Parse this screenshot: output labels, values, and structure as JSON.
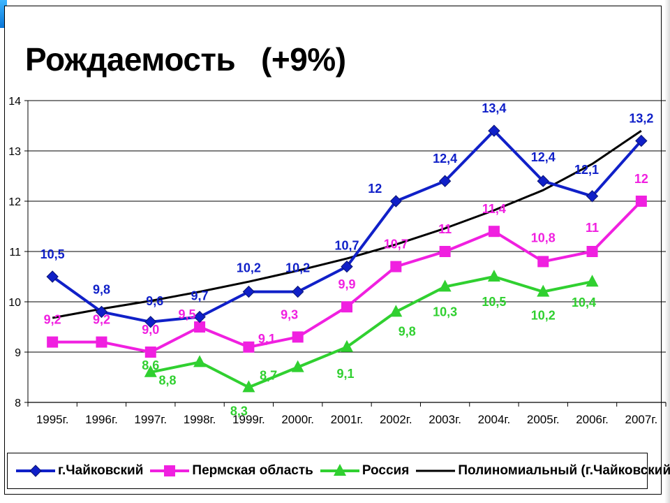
{
  "chart_data": {
    "type": "line",
    "title": "Рождаемость   (+9%)",
    "categories": [
      "1995г.",
      "1996г.",
      "1997г.",
      "1998г.",
      "1999г.",
      "2000г.",
      "2001г.",
      "2002г.",
      "2003г.",
      "2004г.",
      "2005г.",
      "2006г.",
      "2007г."
    ],
    "ylim": [
      8,
      14
    ],
    "yticks": [
      "8",
      "9",
      "10",
      "11",
      "12",
      "13",
      "14"
    ],
    "grid": true,
    "legend_position": "bottom",
    "series": [
      {
        "name": "г.Чайковский",
        "color": "#1020c8",
        "marker": "diamond",
        "values": [
          10.5,
          9.8,
          9.6,
          9.7,
          10.2,
          10.2,
          10.7,
          12,
          12.4,
          13.4,
          12.4,
          12.1,
          13.2
        ],
        "labels": [
          "10,5",
          "9,8",
          "9,6",
          "9,7",
          "10,2",
          "10,2",
          "10,7",
          "12",
          "12,4",
          "13,4",
          "12,4",
          "12,1",
          "13,2"
        ]
      },
      {
        "name": "Пермская область",
        "color": "#f020e0",
        "marker": "square",
        "values": [
          9.2,
          9.2,
          9.0,
          9.5,
          9.1,
          9.3,
          9.9,
          10.7,
          11,
          11.4,
          10.8,
          11,
          12
        ],
        "labels": [
          "9,2",
          "9,2",
          "9,0",
          "9,5",
          "9,1",
          "9,3",
          "9,9",
          "10,7",
          "11",
          "11,4",
          "10,8",
          "11",
          "12"
        ]
      },
      {
        "name": "Россия",
        "color": "#30d030",
        "marker": "triangle",
        "values": [
          null,
          null,
          8.6,
          8.8,
          8.3,
          8.7,
          9.1,
          9.8,
          10.3,
          10.5,
          10.2,
          10.4,
          null
        ],
        "labels": [
          null,
          null,
          "8,6",
          "8,8",
          "8,3",
          "8,7",
          "9,1",
          "9,8",
          "10,3",
          "10,5",
          "10,2",
          "10,4",
          null
        ]
      },
      {
        "name": "Полиномиальный  (г.Чайковский )",
        "color": "#000000",
        "marker": "none",
        "trend": "polynomial",
        "values": [
          9.68,
          9.86,
          10.02,
          10.2,
          10.4,
          10.62,
          10.86,
          11.14,
          11.46,
          11.82,
          12.22,
          12.74,
          13.4
        ]
      }
    ]
  }
}
